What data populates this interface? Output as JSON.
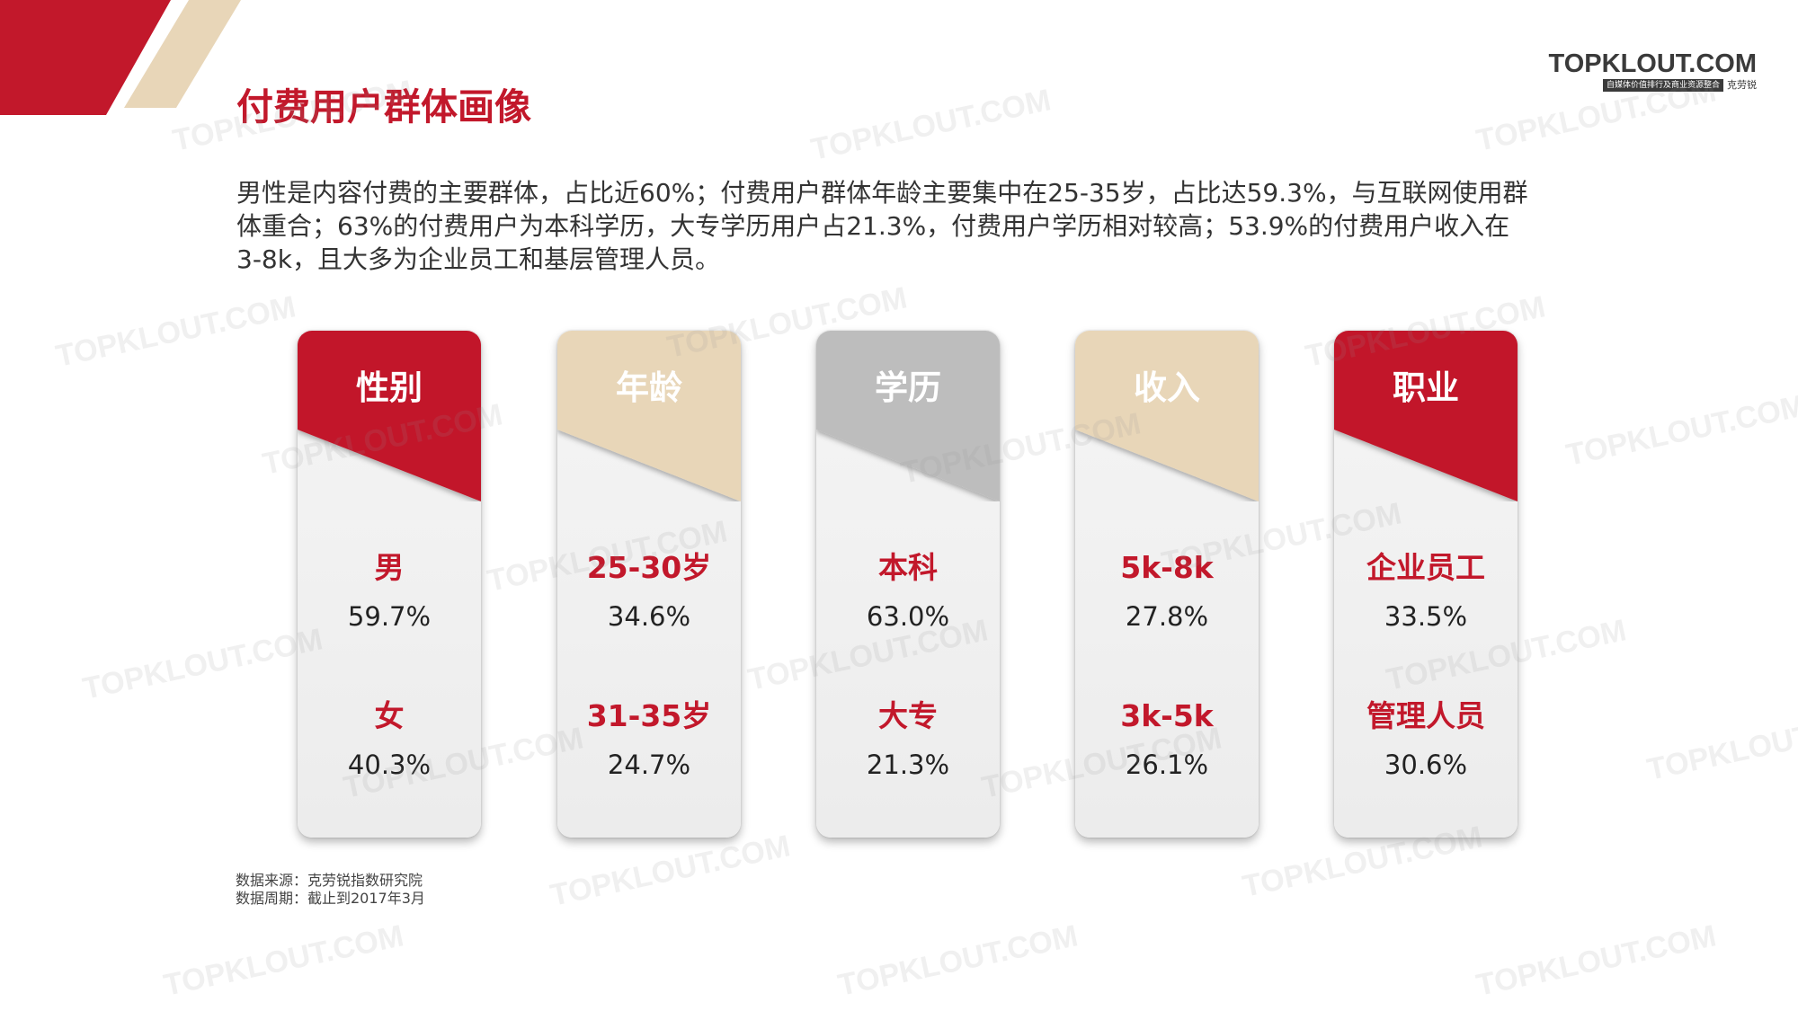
{
  "logo": {
    "main": "TOPKLOUT.COM",
    "tagline": "自媒体价值排行及商业资源整合",
    "brand": "克劳锐"
  },
  "title": "付费用户群体画像",
  "description": "男性是内容付费的主要群体，占比近60%；付费用户群体年龄主要集中在25-35岁，占比达59.3%，与互联网使用群体重合；63%的付费用户为本科学历，大专学历用户占21.3%，付费用户学历相对较高；53.9%的付费用户收入在3-8k，且大多为企业员工和基层管理人员。",
  "cards": [
    {
      "title": "性别",
      "items": [
        {
          "label": "男",
          "value": "59.7%"
        },
        {
          "label": "女",
          "value": "40.3%"
        }
      ]
    },
    {
      "title": "年龄",
      "items": [
        {
          "label": "25-30岁",
          "value": "34.6%"
        },
        {
          "label": "31-35岁",
          "value": "24.7%"
        }
      ]
    },
    {
      "title": "学历",
      "items": [
        {
          "label": "本科",
          "value": "63.0%"
        },
        {
          "label": "大专",
          "value": "21.3%"
        }
      ]
    },
    {
      "title": "收入",
      "items": [
        {
          "label": "5k-8k",
          "value": "27.8%"
        },
        {
          "label": "3k-5k",
          "value": "26.1%"
        }
      ]
    },
    {
      "title": "职业",
      "items": [
        {
          "label": "企业员工",
          "value": "33.5%"
        },
        {
          "label": "管理人员",
          "value": "30.6%"
        }
      ]
    }
  ],
  "card_colors": [
    "#c2182b",
    "#e8d6b8",
    "#bdbdbd",
    "#e8d6b8",
    "#c2182b"
  ],
  "accent_color": "#c2182b",
  "source": {
    "line1": "数据来源：克劳锐指数研究院",
    "line2": "数据周期：截止到2017年3月"
  },
  "watermark": "TOPKLOUT.COM"
}
